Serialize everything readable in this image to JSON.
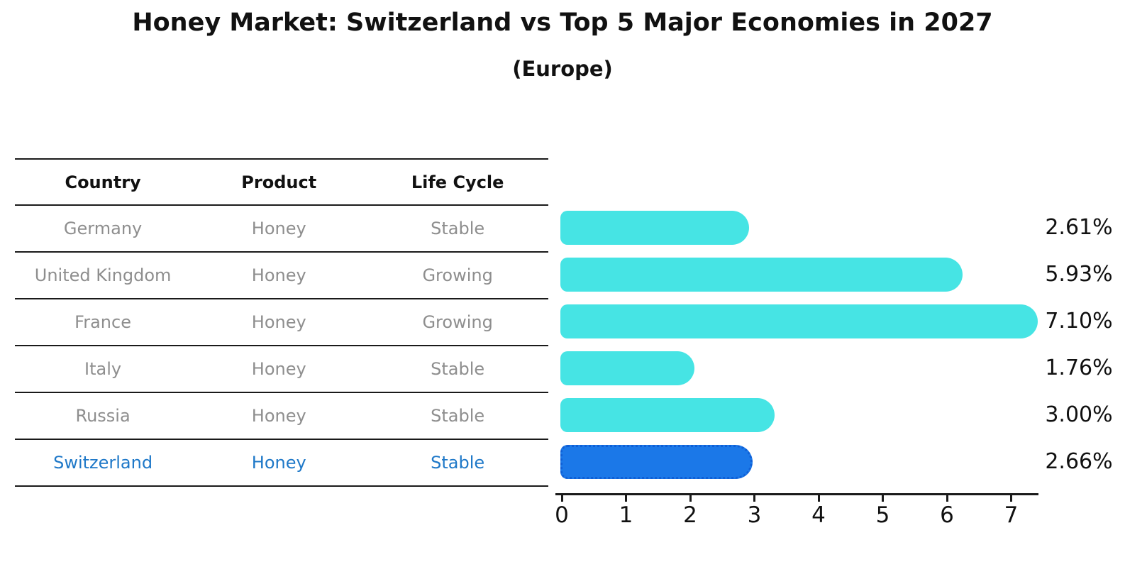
{
  "title": "Honey Market: Switzerland vs Top 5 Major Economies in 2027",
  "subtitle": "(Europe)",
  "table": {
    "headers": [
      "Country",
      "Product",
      "Life Cycle"
    ],
    "rows": [
      {
        "country": "Germany",
        "product": "Honey",
        "life_cycle": "Stable",
        "highlight": false
      },
      {
        "country": "United Kingdom",
        "product": "Honey",
        "life_cycle": "Growing",
        "highlight": false
      },
      {
        "country": "France",
        "product": "Honey",
        "life_cycle": "Growing",
        "highlight": false
      },
      {
        "country": "Italy",
        "product": "Honey",
        "life_cycle": "Stable",
        "highlight": false
      },
      {
        "country": "Russia",
        "product": "Honey",
        "life_cycle": "Stable",
        "highlight": false
      },
      {
        "country": "Switzerland",
        "product": "Honey",
        "life_cycle": "Stable",
        "highlight": true
      }
    ]
  },
  "chart_data": {
    "type": "bar",
    "orientation": "horizontal",
    "title": "Honey Market: Switzerland vs Top 5 Major Economies in 2027",
    "subtitle": "(Europe)",
    "categories": [
      "Germany",
      "United Kingdom",
      "France",
      "Italy",
      "Russia",
      "Switzerland"
    ],
    "values": [
      2.61,
      5.93,
      7.1,
      1.76,
      3.0,
      2.66
    ],
    "value_labels": [
      "2.61%",
      "5.93%",
      "7.10%",
      "1.76%",
      "3.00%",
      "2.66%"
    ],
    "x_ticks": [
      "0",
      "1",
      "2",
      "3",
      "4",
      "5",
      "6",
      "7"
    ],
    "xlim": [
      0,
      7.4
    ],
    "grid": false,
    "legend": false,
    "highlight_index": 5
  },
  "colors": {
    "bar": "#46E4E4",
    "highlight_bar": "#1B78E8",
    "highlight_border": "#0F5FD6",
    "highlight_text": "#1E78C8",
    "table_text": "#8E8E8E",
    "header_text": "#111111",
    "axis": "#1A1A1A"
  }
}
